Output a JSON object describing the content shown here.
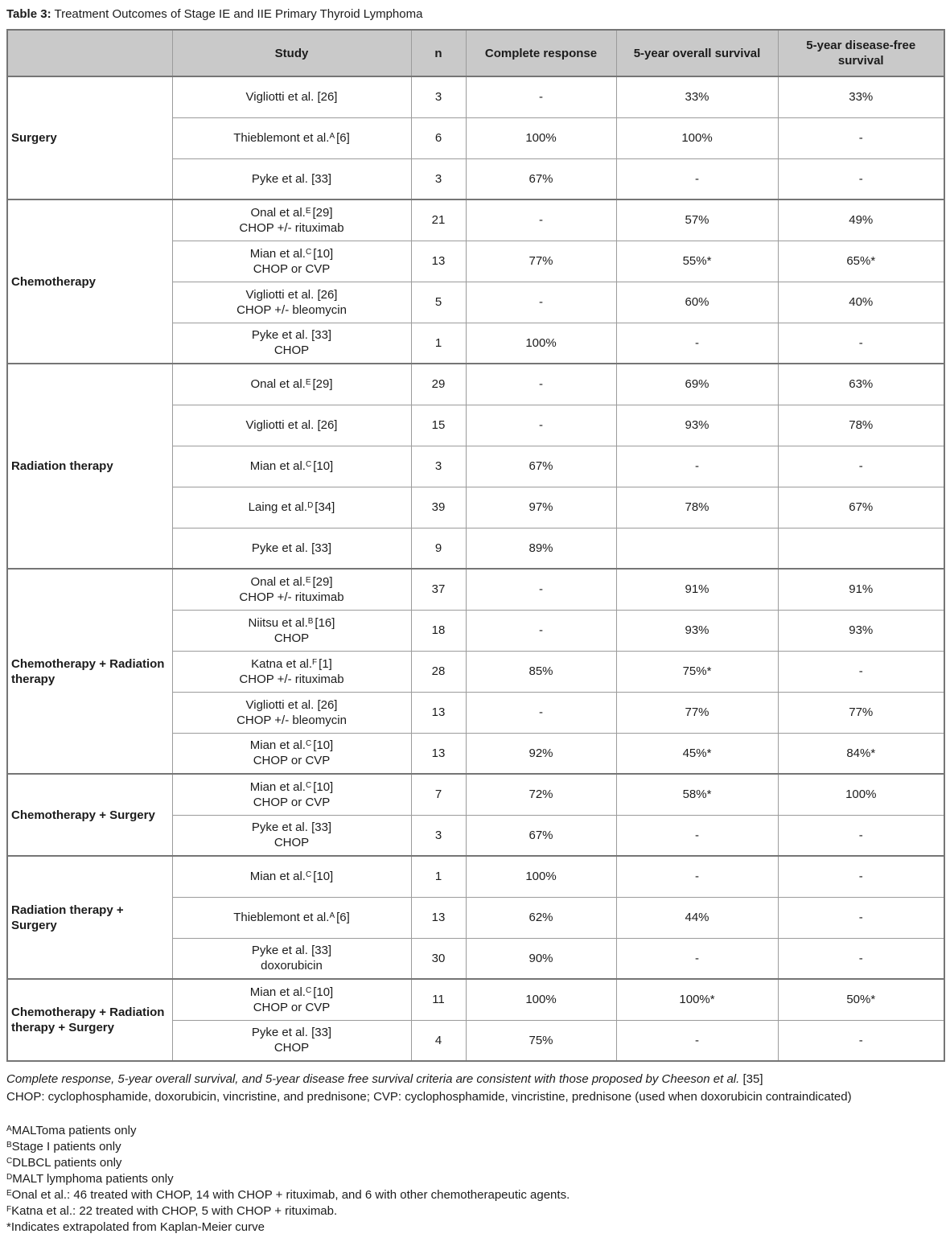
{
  "title": {
    "label": "Table 3:",
    "text": "Treatment Outcomes of Stage IE and IIE Primary Thyroid Lymphoma"
  },
  "table": {
    "columns": [
      "",
      "Study",
      "n",
      "Complete response",
      "5-year overall survival",
      "5-year disease-free survival"
    ],
    "sections": [
      {
        "category": "Surgery",
        "rows": [
          {
            "pre": "Vigliotti et al. [26]",
            "sup": "",
            "post": "",
            "detail": "",
            "n": "3",
            "cr": "-",
            "os": "33%",
            "dfs": "33%"
          },
          {
            "pre": "Thieblemont et al.",
            "sup": "A",
            "post": "[6]",
            "detail": "",
            "n": "6",
            "cr": "100%",
            "os": "100%",
            "dfs": "-"
          },
          {
            "pre": "Pyke et al. [33]",
            "sup": "",
            "post": "",
            "detail": "",
            "n": "3",
            "cr": "67%",
            "os": "-",
            "dfs": "-"
          }
        ]
      },
      {
        "category": "Chemotherapy",
        "rows": [
          {
            "pre": "Onal et al.",
            "sup": "E",
            "post": "[29]",
            "detail": "CHOP +/- rituximab",
            "n": "21",
            "cr": "-",
            "os": "57%",
            "dfs": "49%"
          },
          {
            "pre": "Mian et al.",
            "sup": "C",
            "post": "[10]",
            "detail": "CHOP or CVP",
            "n": "13",
            "cr": "77%",
            "os": "55%*",
            "dfs": "65%*"
          },
          {
            "pre": "Vigliotti et al. [26]",
            "sup": "",
            "post": "",
            "detail": "CHOP +/- bleomycin",
            "n": "5",
            "cr": "-",
            "os": "60%",
            "dfs": "40%"
          },
          {
            "pre": "Pyke et al. [33]",
            "sup": "",
            "post": "",
            "detail": "CHOP",
            "n": "1",
            "cr": "100%",
            "os": "-",
            "dfs": "-"
          }
        ]
      },
      {
        "category": "Radiation therapy",
        "rows": [
          {
            "pre": "Onal et al.",
            "sup": "E",
            "post": "[29]",
            "detail": "",
            "n": "29",
            "cr": "-",
            "os": "69%",
            "dfs": "63%"
          },
          {
            "pre": "Vigliotti et al. [26]",
            "sup": "",
            "post": "",
            "detail": "",
            "n": "15",
            "cr": "-",
            "os": "93%",
            "dfs": "78%"
          },
          {
            "pre": "Mian et al.",
            "sup": "C",
            "post": "[10]",
            "detail": "",
            "n": "3",
            "cr": "67%",
            "os": "-",
            "dfs": "-"
          },
          {
            "pre": "Laing et al.",
            "sup": "D",
            "post": "[34]",
            "detail": "",
            "n": "39",
            "cr": "97%",
            "os": "78%",
            "dfs": "67%"
          },
          {
            "pre": "Pyke et al. [33]",
            "sup": "",
            "post": "",
            "detail": "",
            "n": "9",
            "cr": "89%",
            "os": "",
            "dfs": ""
          }
        ]
      },
      {
        "category": "Chemotherapy + Radiation therapy",
        "rows": [
          {
            "pre": "Onal et al.",
            "sup": "E",
            "post": "[29]",
            "detail": "CHOP +/- rituximab",
            "n": "37",
            "cr": "-",
            "os": "91%",
            "dfs": "91%"
          },
          {
            "pre": "Niitsu et al.",
            "sup": "B",
            "post": "[16]",
            "detail": "CHOP",
            "n": "18",
            "cr": "-",
            "os": "93%",
            "dfs": "93%"
          },
          {
            "pre": "Katna et al.",
            "sup": "F",
            "post": "[1]",
            "detail": "CHOP +/- rituximab",
            "n": "28",
            "cr": "85%",
            "os": "75%*",
            "dfs": "-"
          },
          {
            "pre": "Vigliotti et al. [26]",
            "sup": "",
            "post": "",
            "detail": "CHOP +/- bleomycin",
            "n": "13",
            "cr": "-",
            "os": "77%",
            "dfs": "77%"
          },
          {
            "pre": "Mian et al.",
            "sup": "C",
            "post": "[10]",
            "detail": "CHOP or CVP",
            "n": "13",
            "cr": "92%",
            "os": "45%*",
            "dfs": "84%*"
          }
        ]
      },
      {
        "category": "Chemotherapy + Surgery",
        "rows": [
          {
            "pre": "Mian et al.",
            "sup": "C",
            "post": "[10]",
            "detail": "CHOP or CVP",
            "n": "7",
            "cr": "72%",
            "os": "58%*",
            "dfs": "100%"
          },
          {
            "pre": "Pyke et al. [33]",
            "sup": "",
            "post": "",
            "detail": "CHOP",
            "n": "3",
            "cr": "67%",
            "os": "-",
            "dfs": "-"
          }
        ]
      },
      {
        "category": "Radiation therapy + Surgery",
        "rows": [
          {
            "pre": "Mian et al.",
            "sup": "C",
            "post": "[10]",
            "detail": "",
            "n": "1",
            "cr": "100%",
            "os": "-",
            "dfs": "-"
          },
          {
            "pre": "Thieblemont et al.",
            "sup": "A",
            "post": "[6]",
            "detail": "",
            "n": "13",
            "cr": "62%",
            "os": "44%",
            "dfs": "-"
          },
          {
            "pre": "Pyke et al. [33]",
            "sup": "",
            "post": "",
            "detail": "doxorubicin",
            "n": "30",
            "cr": "90%",
            "os": "-",
            "dfs": "-"
          }
        ]
      },
      {
        "category": "Chemotherapy + Radiation therapy + Surgery",
        "rows": [
          {
            "pre": "Mian et al.",
            "sup": "C",
            "post": "[10]",
            "detail": "CHOP or CVP",
            "n": "11",
            "cr": "100%",
            "os": "100%*",
            "dfs": "50%*"
          },
          {
            "pre": "Pyke et al. [33]",
            "sup": "",
            "post": "",
            "detail": "CHOP",
            "n": "4",
            "cr": "75%",
            "os": "-",
            "dfs": "-"
          }
        ]
      }
    ]
  },
  "footnotes": {
    "criteria_italic": "Complete response, 5-year overall survival, and 5-year disease free survival criteria are consistent with those proposed by Cheeson et al.",
    "criteria_ref": " [35]",
    "chop_line": "CHOP: cyclophosphamide, doxorubicin, vincristine, and prednisone; CVP: cyclophosphamide, vincristine, prednisone (used when doxorubicin contraindicated)",
    "notes": [
      {
        "sup": "A",
        "text": "MALToma patients only"
      },
      {
        "sup": "B",
        "text": "Stage I patients only"
      },
      {
        "sup": "C",
        "text": "DLBCL patients only"
      },
      {
        "sup": "D",
        "text": "MALT lymphoma patients only"
      },
      {
        "sup": "E",
        "text": "Onal et al.: 46 treated with CHOP, 14 with CHOP + rituximab, and 6 with other chemotherapeutic agents."
      },
      {
        "sup": "F",
        "text": "Katna et al.: 22 treated with CHOP, 5 with CHOP + rituximab."
      },
      {
        "sup": "",
        "text": "*Indicates extrapolated from Kaplan-Meier curve"
      }
    ]
  },
  "colors": {
    "header_bg": "#c9c9c9",
    "border_light": "#9b9b9b",
    "border_heavy": "#757575",
    "text": "#1c1c1c"
  }
}
